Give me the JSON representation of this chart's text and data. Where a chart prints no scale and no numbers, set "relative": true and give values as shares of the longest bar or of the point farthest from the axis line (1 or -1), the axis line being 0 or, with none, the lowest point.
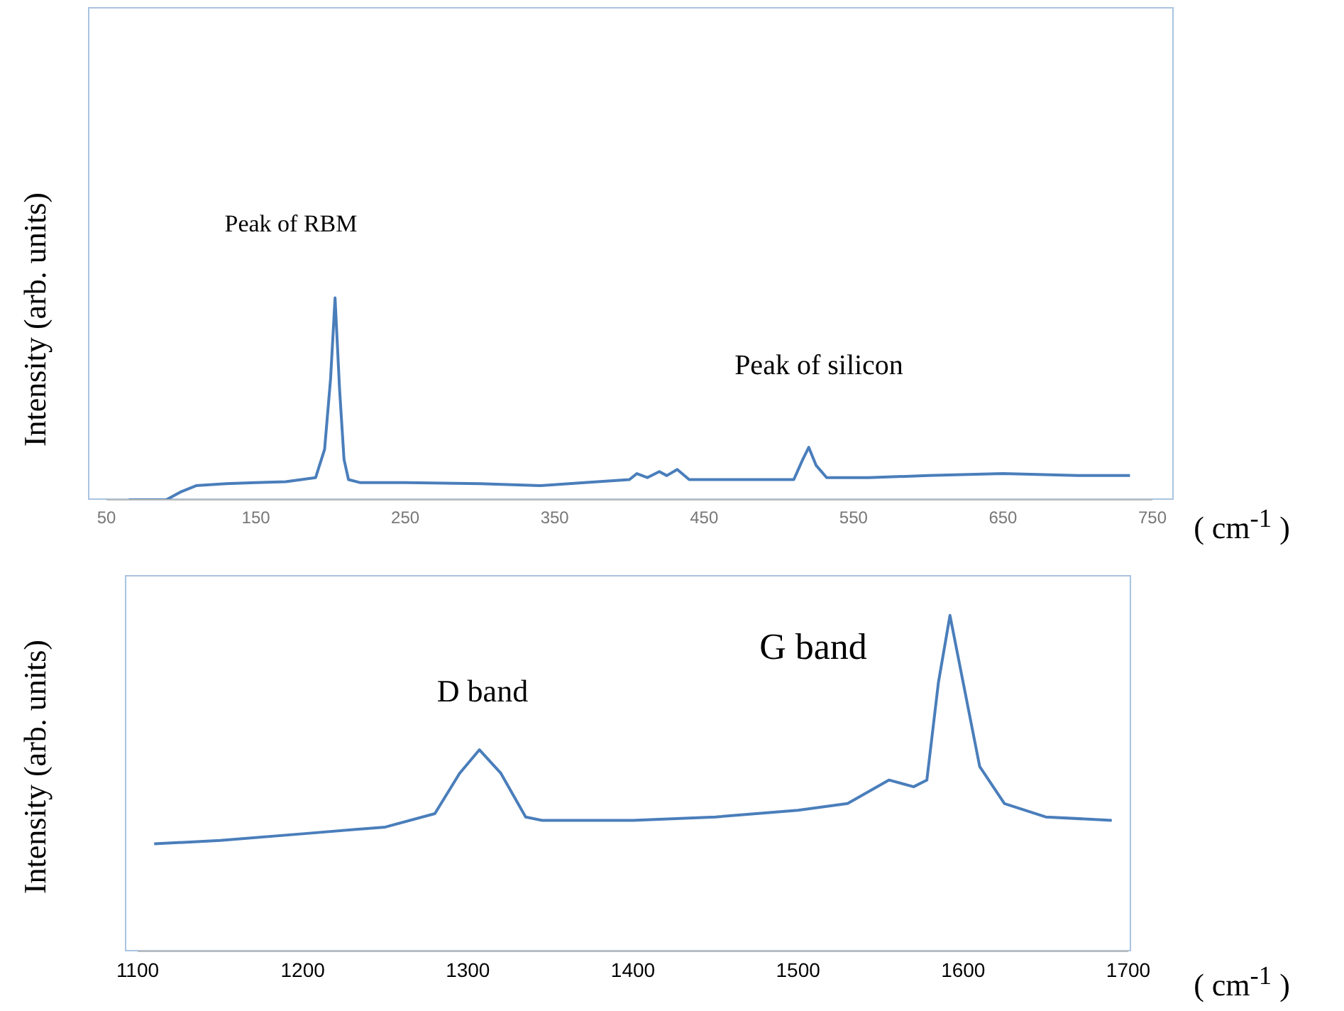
{
  "chart_data": [
    {
      "type": "line",
      "relative": true,
      "xlabel": "( cm$^{-1}$ )",
      "ylabel": "Intensity (arb. units)",
      "xlim": [
        50,
        750
      ],
      "xticks": [
        50,
        150,
        250,
        350,
        450,
        550,
        650,
        750
      ],
      "annotations": [
        "Peak of RBM",
        "Peak of silicon"
      ],
      "color": "#4a7ebb",
      "x": [
        65,
        90,
        100,
        110,
        130,
        150,
        170,
        190,
        196,
        200,
        203,
        206,
        209,
        212,
        220,
        250,
        300,
        340,
        370,
        400,
        405,
        412,
        420,
        425,
        432,
        440,
        450,
        480,
        510,
        516,
        520,
        525,
        532,
        560,
        600,
        650,
        700,
        735
      ],
      "values": [
        0,
        0,
        0.04,
        0.07,
        0.08,
        0.085,
        0.09,
        0.11,
        0.25,
        0.6,
        1,
        0.55,
        0.2,
        0.1,
        0.085,
        0.085,
        0.08,
        0.07,
        0.085,
        0.1,
        0.13,
        0.11,
        0.14,
        0.12,
        0.15,
        0.1,
        0.1,
        0.1,
        0.1,
        0.2,
        0.26,
        0.17,
        0.11,
        0.11,
        0.12,
        0.13,
        0.12,
        0.12
      ]
    },
    {
      "type": "line",
      "relative": true,
      "xlabel": "( cm$^{-1}$ )",
      "ylabel": "Intensity (arb. units)",
      "xlim": [
        1100,
        1700
      ],
      "xticks": [
        1100,
        1200,
        1300,
        1400,
        1500,
        1600,
        1700
      ],
      "annotations": [
        "D band",
        "G band"
      ],
      "color": "#4a7ebb",
      "x": [
        1110,
        1150,
        1200,
        1250,
        1280,
        1295,
        1307,
        1320,
        1335,
        1345,
        1400,
        1450,
        1500,
        1530,
        1555,
        1570,
        1578,
        1585,
        1592,
        1600,
        1610,
        1625,
        1650,
        1690
      ],
      "values": [
        0.32,
        0.33,
        0.35,
        0.37,
        0.41,
        0.53,
        0.6,
        0.53,
        0.4,
        0.39,
        0.39,
        0.4,
        0.42,
        0.44,
        0.51,
        0.49,
        0.51,
        0.8,
        1,
        0.8,
        0.55,
        0.44,
        0.4,
        0.39
      ]
    }
  ]
}
